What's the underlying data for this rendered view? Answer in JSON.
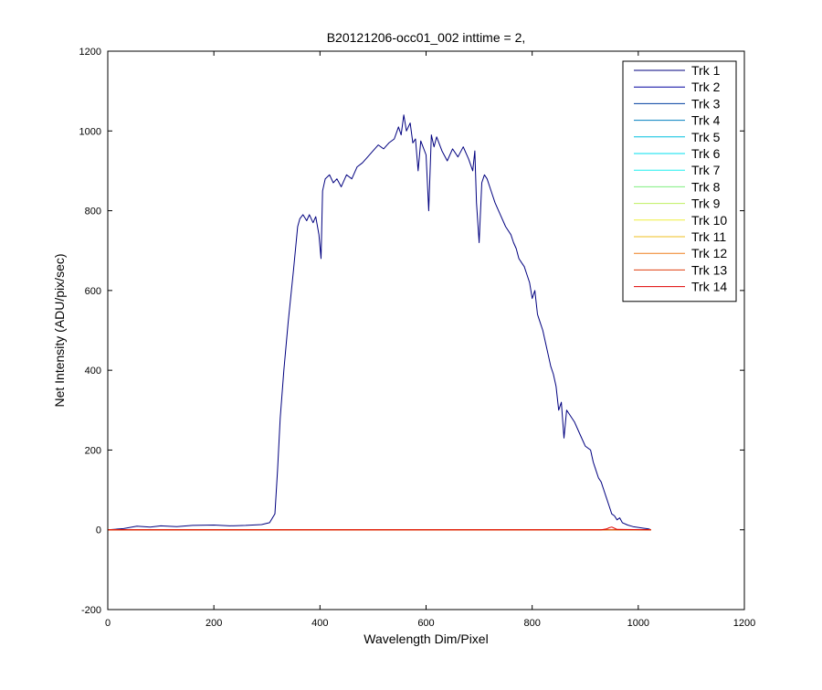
{
  "chart_data": {
    "type": "line",
    "title": "B20121206-occ01_002 inttime = 2,",
    "xlabel": "Wavelength Dim/Pixel",
    "ylabel": "Net Intensity (ADU/pix/sec)",
    "xlim": [
      0,
      1200
    ],
    "ylim": [
      -200,
      1200
    ],
    "xticks": [
      0,
      200,
      400,
      600,
      800,
      1000,
      1200
    ],
    "yticks": [
      -200,
      0,
      200,
      400,
      600,
      800,
      1000,
      1200
    ],
    "xtick_labels": [
      "0",
      "200",
      "400",
      "600",
      "800",
      "1000",
      "1200"
    ],
    "ytick_labels": [
      "-200",
      "0",
      "200",
      "400",
      "600",
      "800",
      "1000",
      "1200"
    ],
    "grid": false,
    "legend_position": "top-right",
    "series": [
      {
        "name": "Trk 1",
        "color": "#00007f",
        "x": [
          0,
          30,
          55,
          80,
          100,
          130,
          160,
          200,
          230,
          260,
          290,
          305,
          315,
          320,
          325,
          332,
          340,
          350,
          358,
          362,
          368,
          375,
          380,
          387,
          392,
          398,
          402,
          405,
          410,
          418,
          425,
          432,
          440,
          450,
          460,
          470,
          480,
          490,
          500,
          510,
          520,
          530,
          540,
          548,
          553,
          558,
          563,
          570,
          575,
          580,
          585,
          590,
          600,
          605,
          610,
          615,
          620,
          630,
          640,
          650,
          660,
          670,
          680,
          688,
          692,
          695,
          700,
          705,
          710,
          715,
          720,
          725,
          730,
          740,
          750,
          760,
          765,
          770,
          775,
          780,
          785,
          790,
          795,
          800,
          805,
          810,
          815,
          820,
          825,
          830,
          835,
          840,
          845,
          850,
          855,
          860,
          865,
          870,
          880,
          890,
          900,
          910,
          915,
          920,
          925,
          930,
          935,
          940,
          945,
          950,
          955,
          960,
          965,
          970,
          980,
          990,
          1000,
          1010,
          1020,
          1024
        ],
        "y": [
          0,
          3,
          9,
          7,
          10,
          8,
          11,
          12,
          10,
          11,
          13,
          18,
          40,
          150,
          280,
          400,
          520,
          650,
          760,
          780,
          790,
          775,
          790,
          770,
          785,
          740,
          680,
          850,
          880,
          890,
          870,
          880,
          860,
          890,
          880,
          910,
          920,
          935,
          950,
          965,
          955,
          970,
          980,
          1010,
          990,
          1040,
          1000,
          1020,
          970,
          980,
          900,
          975,
          940,
          800,
          990,
          960,
          985,
          950,
          925,
          955,
          935,
          960,
          930,
          900,
          950,
          820,
          720,
          870,
          890,
          880,
          860,
          840,
          820,
          790,
          760,
          740,
          720,
          705,
          680,
          670,
          660,
          640,
          620,
          580,
          600,
          540,
          520,
          500,
          470,
          440,
          410,
          390,
          360,
          300,
          320,
          230,
          300,
          290,
          270,
          240,
          210,
          200,
          170,
          150,
          130,
          120,
          100,
          80,
          60,
          40,
          35,
          25,
          30,
          18,
          12,
          8,
          6,
          4,
          2,
          0
        ]
      },
      {
        "name": "Trk 2",
        "color": "#00009f",
        "x": [
          0,
          1024
        ],
        "y": [
          0,
          0
        ]
      },
      {
        "name": "Trk 3",
        "color": "#003f9f",
        "x": [
          0,
          1024
        ],
        "y": [
          0,
          0
        ]
      },
      {
        "name": "Trk 4",
        "color": "#007fbf",
        "x": [
          0,
          1024
        ],
        "y": [
          0,
          0
        ]
      },
      {
        "name": "Trk 5",
        "color": "#00bfdf",
        "x": [
          0,
          1024
        ],
        "y": [
          0,
          0
        ]
      },
      {
        "name": "Trk 6",
        "color": "#00dfef",
        "x": [
          0,
          1024
        ],
        "y": [
          0,
          0
        ]
      },
      {
        "name": "Trk 7",
        "color": "#1fefef",
        "x": [
          0,
          1024
        ],
        "y": [
          0,
          0
        ]
      },
      {
        "name": "Trk 8",
        "color": "#7fef7f",
        "x": [
          0,
          1024
        ],
        "y": [
          0,
          0
        ]
      },
      {
        "name": "Trk 9",
        "color": "#bfef5f",
        "x": [
          0,
          1024
        ],
        "y": [
          0,
          0
        ]
      },
      {
        "name": "Trk 10",
        "color": "#efef3f",
        "x": [
          0,
          1024
        ],
        "y": [
          0,
          0
        ]
      },
      {
        "name": "Trk 11",
        "color": "#efbf1f",
        "x": [
          0,
          1024
        ],
        "y": [
          0,
          0
        ]
      },
      {
        "name": "Trk 12",
        "color": "#ef7f1f",
        "x": [
          0,
          1024
        ],
        "y": [
          0,
          0
        ]
      },
      {
        "name": "Trk 13",
        "color": "#df3f0f",
        "x": [
          0,
          1024
        ],
        "y": [
          0,
          0
        ]
      },
      {
        "name": "Trk 14",
        "color": "#df0000",
        "x": [
          0,
          200,
          400,
          600,
          800,
          930,
          940,
          945,
          950,
          955,
          960,
          1024
        ],
        "y": [
          0,
          0,
          0,
          0,
          0,
          0,
          2,
          5,
          7,
          4,
          1,
          0
        ]
      }
    ]
  }
}
